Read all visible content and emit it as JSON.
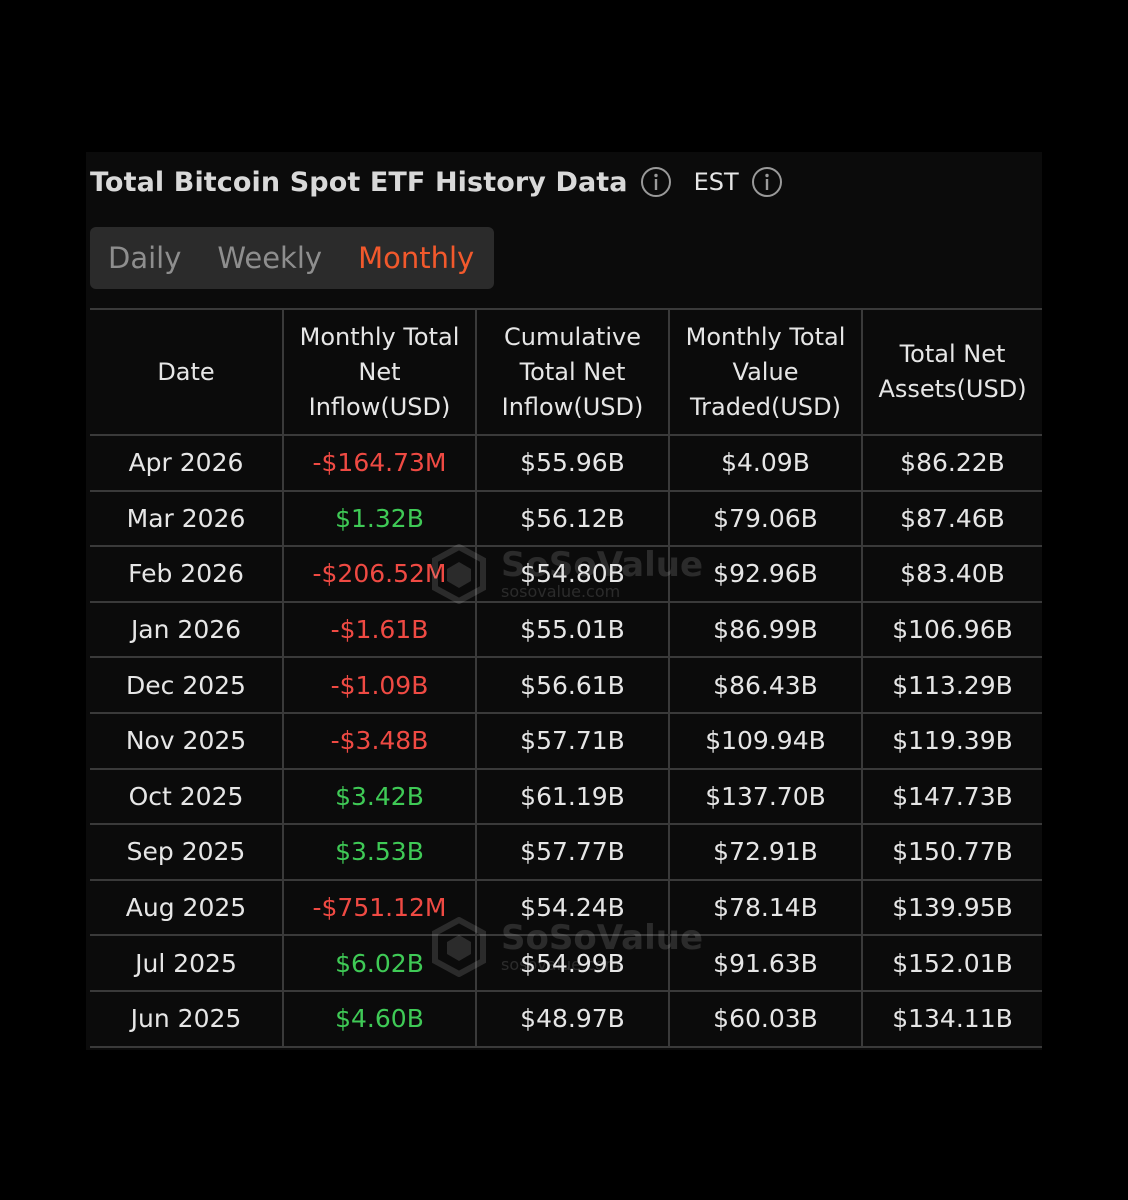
{
  "header": {
    "title": "Total Bitcoin Spot ETF History Data",
    "timezone": "EST"
  },
  "tabs": [
    {
      "label": "Daily",
      "active": false
    },
    {
      "label": "Weekly",
      "active": false
    },
    {
      "label": "Monthly",
      "active": true
    }
  ],
  "colors": {
    "accent": "#f2592c",
    "negative": "#ef4a43",
    "positive": "#3fca56",
    "background": "#0b0b0b"
  },
  "table": {
    "columns": [
      "Date",
      "Monthly Total Net Inflow(USD)",
      "Cumulative Total Net Inflow(USD)",
      "Monthly Total Value Traded(USD)",
      "Total Net Assets(USD)"
    ],
    "rows": [
      {
        "date": "Apr 2026",
        "net_inflow": "-$164.73M",
        "sign": "neg",
        "cumulative": "$55.96B",
        "value_traded": "$4.09B",
        "net_assets": "$86.22B"
      },
      {
        "date": "Mar 2026",
        "net_inflow": "$1.32B",
        "sign": "pos",
        "cumulative": "$56.12B",
        "value_traded": "$79.06B",
        "net_assets": "$87.46B"
      },
      {
        "date": "Feb 2026",
        "net_inflow": "-$206.52M",
        "sign": "neg",
        "cumulative": "$54.80B",
        "value_traded": "$92.96B",
        "net_assets": "$83.40B"
      },
      {
        "date": "Jan 2026",
        "net_inflow": "-$1.61B",
        "sign": "neg",
        "cumulative": "$55.01B",
        "value_traded": "$86.99B",
        "net_assets": "$106.96B"
      },
      {
        "date": "Dec 2025",
        "net_inflow": "-$1.09B",
        "sign": "neg",
        "cumulative": "$56.61B",
        "value_traded": "$86.43B",
        "net_assets": "$113.29B"
      },
      {
        "date": "Nov 2025",
        "net_inflow": "-$3.48B",
        "sign": "neg",
        "cumulative": "$57.71B",
        "value_traded": "$109.94B",
        "net_assets": "$119.39B"
      },
      {
        "date": "Oct 2025",
        "net_inflow": "$3.42B",
        "sign": "pos",
        "cumulative": "$61.19B",
        "value_traded": "$137.70B",
        "net_assets": "$147.73B"
      },
      {
        "date": "Sep 2025",
        "net_inflow": "$3.53B",
        "sign": "pos",
        "cumulative": "$57.77B",
        "value_traded": "$72.91B",
        "net_assets": "$150.77B"
      },
      {
        "date": "Aug 2025",
        "net_inflow": "-$751.12M",
        "sign": "neg",
        "cumulative": "$54.24B",
        "value_traded": "$78.14B",
        "net_assets": "$139.95B"
      },
      {
        "date": "Jul 2025",
        "net_inflow": "$6.02B",
        "sign": "pos",
        "cumulative": "$54.99B",
        "value_traded": "$91.63B",
        "net_assets": "$152.01B"
      },
      {
        "date": "Jun 2025",
        "net_inflow": "$4.60B",
        "sign": "pos",
        "cumulative": "$48.97B",
        "value_traded": "$60.03B",
        "net_assets": "$134.11B"
      }
    ]
  },
  "watermark": {
    "brand": "SoSoValue",
    "url": "sosovalue.com"
  }
}
